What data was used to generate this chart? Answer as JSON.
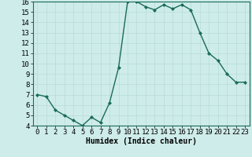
{
  "x": [
    0,
    1,
    2,
    3,
    4,
    5,
    6,
    7,
    8,
    9,
    10,
    11,
    12,
    13,
    14,
    15,
    16,
    17,
    18,
    19,
    20,
    21,
    22,
    23
  ],
  "y": [
    7.0,
    6.8,
    5.5,
    5.0,
    4.5,
    4.0,
    4.8,
    4.3,
    6.2,
    9.6,
    16.0,
    16.0,
    15.5,
    15.2,
    15.7,
    15.3,
    15.7,
    15.2,
    13.0,
    11.0,
    10.3,
    9.0,
    8.2,
    8.2
  ],
  "line_color": "#1a6b5a",
  "marker": "D",
  "marker_size": 2.0,
  "bg_color": "#ceecea",
  "grid_color": "#b8dbd8",
  "xlabel": "Humidex (Indice chaleur)",
  "ylim": [
    4,
    16
  ],
  "xlim": [
    -0.5,
    23.5
  ],
  "yticks": [
    4,
    5,
    6,
    7,
    8,
    9,
    10,
    11,
    12,
    13,
    14,
    15,
    16
  ],
  "xticks": [
    0,
    1,
    2,
    3,
    4,
    5,
    6,
    7,
    8,
    9,
    10,
    11,
    12,
    13,
    14,
    15,
    16,
    17,
    18,
    19,
    20,
    21,
    22,
    23
  ],
  "xlabel_fontsize": 7,
  "tick_fontsize": 6.5,
  "linewidth": 1.0
}
